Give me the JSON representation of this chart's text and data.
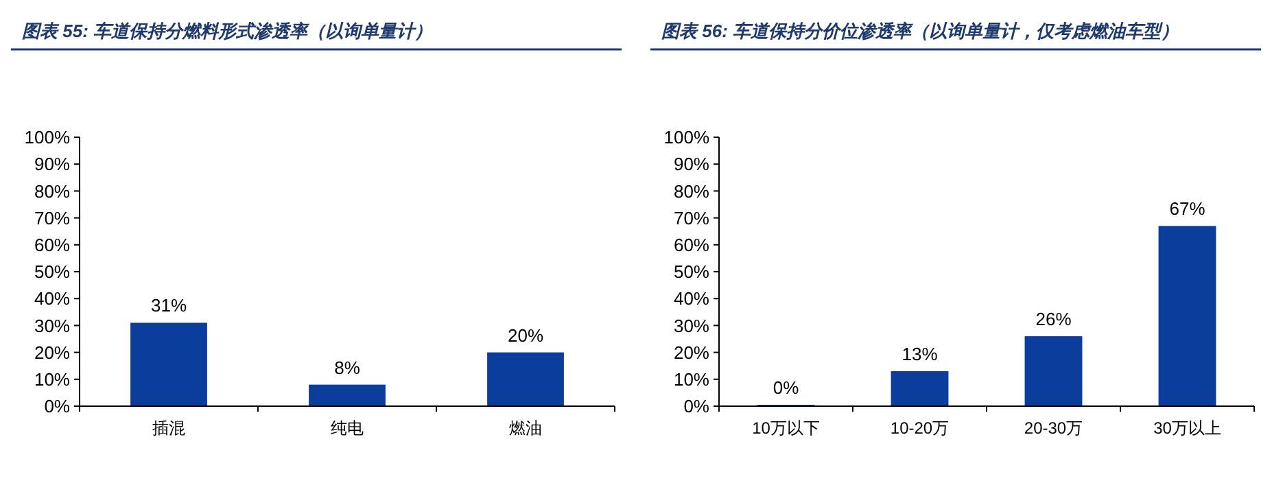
{
  "chart_data": [
    {
      "type": "bar",
      "title": "图表 55:  车道保持分燃料形式渗透率（以询单量计）",
      "categories": [
        "插混",
        "纯电",
        "燃油"
      ],
      "values": [
        31,
        8,
        20
      ],
      "color": "#0a3d9c",
      "value_labels": [
        "31%",
        "8%",
        "20%"
      ],
      "ylim": [
        0,
        100
      ],
      "yticks": [
        {
          "value": 0,
          "label": "0%"
        },
        {
          "value": 10,
          "label": "10%"
        },
        {
          "value": 20,
          "label": "20%"
        },
        {
          "value": 30,
          "label": "30%"
        },
        {
          "value": 40,
          "label": "40%"
        },
        {
          "value": 50,
          "label": "50%"
        },
        {
          "value": 60,
          "label": "60%"
        },
        {
          "value": 70,
          "label": "70%"
        },
        {
          "value": 80,
          "label": "80%"
        },
        {
          "value": 90,
          "label": "90%"
        },
        {
          "value": 100,
          "label": "100%"
        }
      ],
      "grid": false
    },
    {
      "type": "bar",
      "title": "图表 56:  车道保持分价位渗透率（以询单量计，仅考虑燃油车型）",
      "categories": [
        "10万以下",
        "10-20万",
        "20-30万",
        "30万以上"
      ],
      "values": [
        0.5,
        13,
        26,
        67
      ],
      "color": "#0a3d9c",
      "value_labels": [
        "0%",
        "13%",
        "26%",
        "67%"
      ],
      "ylim": [
        0,
        100
      ],
      "yticks": [
        {
          "value": 0,
          "label": "0%"
        },
        {
          "value": 10,
          "label": "10%"
        },
        {
          "value": 20,
          "label": "20%"
        },
        {
          "value": 30,
          "label": "30%"
        },
        {
          "value": 40,
          "label": "40%"
        },
        {
          "value": 50,
          "label": "50%"
        },
        {
          "value": 60,
          "label": "60%"
        },
        {
          "value": 70,
          "label": "70%"
        },
        {
          "value": 80,
          "label": "80%"
        },
        {
          "value": 90,
          "label": "90%"
        },
        {
          "value": 100,
          "label": "100%"
        }
      ],
      "grid": false
    }
  ]
}
